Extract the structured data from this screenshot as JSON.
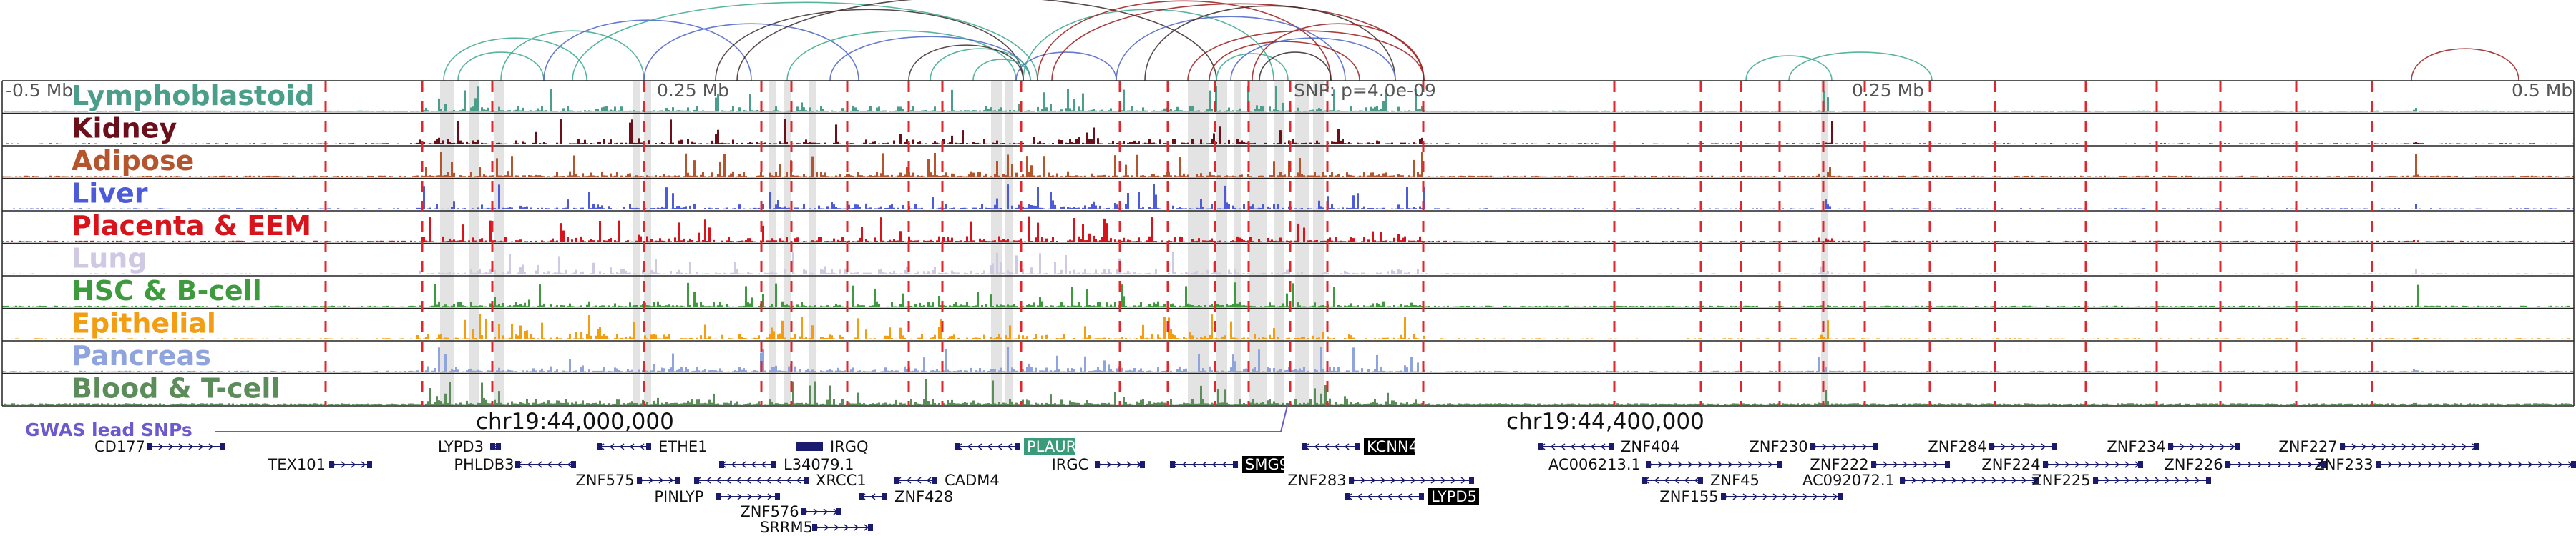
{
  "axis": {
    "left_label": "-0.5 Mb",
    "mid_left_label": "0.25 Mb",
    "snp_label": "SNP: p=4.0e-09",
    "mid_right_label": "0.25 Mb",
    "right_label": "0.5 Mb"
  },
  "coords": [
    "chr19:44,000,000",
    "chr19:44,400,000"
  ],
  "gwas_label": "GWAS lead SNPs",
  "tracks": [
    {
      "name": "Lymphoblastoid",
      "color": "#4a9e8a"
    },
    {
      "name": "Kidney",
      "color": "#6b0f1a"
    },
    {
      "name": "Adipose",
      "color": "#b5552d"
    },
    {
      "name": "Liver",
      "color": "#4d5bd9"
    },
    {
      "name": "Placenta & EEM",
      "color": "#d7141b"
    },
    {
      "name": "Lung",
      "color": "#cfc9e3"
    },
    {
      "name": "HSC & B-cell",
      "color": "#3d9a3d"
    },
    {
      "name": "Epithelial",
      "color": "#f29d12"
    },
    {
      "name": "Pancreas",
      "color": "#8fa3dc"
    },
    {
      "name": "Blood & T-cell",
      "color": "#5b8c5a"
    }
  ],
  "genes": [
    {
      "name": "CD177",
      "strand": "+"
    },
    {
      "name": "TEX101",
      "strand": "+"
    },
    {
      "name": "LYPD3",
      "strand": "-"
    },
    {
      "name": "PHLDB3",
      "strand": "-"
    },
    {
      "name": "ZNF575",
      "strand": "+"
    },
    {
      "name": "ETHE1",
      "strand": "-"
    },
    {
      "name": "PINLYP",
      "strand": "+"
    },
    {
      "name": "ZNF576",
      "strand": "+"
    },
    {
      "name": "SRRM5",
      "strand": "+"
    },
    {
      "name": "XRCC1",
      "strand": "-"
    },
    {
      "name": "IRGQ",
      "strand": "-"
    },
    {
      "name": "L34079.1",
      "strand": "-"
    },
    {
      "name": "ZNF428",
      "strand": "-"
    },
    {
      "name": "CADM4",
      "strand": "-"
    },
    {
      "name": "PLAUR",
      "strand": "-",
      "highlight": "#3a9a7a"
    },
    {
      "name": "IRGC",
      "strand": "+"
    },
    {
      "name": "SMG9",
      "strand": "-",
      "highlight": "#000000"
    },
    {
      "name": "KCNN4",
      "strand": "-",
      "highlight": "#000000"
    },
    {
      "name": "ZNF283",
      "strand": "+"
    },
    {
      "name": "LYPD5",
      "strand": "-",
      "highlight": "#000000"
    },
    {
      "name": "ZNF404",
      "strand": "-"
    },
    {
      "name": "AC006213.1",
      "strand": "+"
    },
    {
      "name": "ZNF45",
      "strand": "-"
    },
    {
      "name": "ZNF155",
      "strand": "+"
    },
    {
      "name": "ZNF230",
      "strand": "+"
    },
    {
      "name": "ZNF222",
      "strand": "+"
    },
    {
      "name": "AC092072.1",
      "strand": "+"
    },
    {
      "name": "ZNF284",
      "strand": "+"
    },
    {
      "name": "ZNF224",
      "strand": "+"
    },
    {
      "name": "ZNF225",
      "strand": "+"
    },
    {
      "name": "ZNF234",
      "strand": "+"
    },
    {
      "name": "ZNF226",
      "strand": "+"
    },
    {
      "name": "ZNF227",
      "strand": "+"
    },
    {
      "name": "ZNF233",
      "strand": "+"
    }
  ],
  "colors": {
    "arc_primary": "#3aa88c",
    "arc_dark": "#3a2a2a",
    "arc_red": "#9b1c1c",
    "arc_blue": "#4a63c9",
    "guide_line": "#e3262b",
    "gene_body": "#1a1a6e",
    "snp_line": "#6a5acd",
    "highlight_band": "#d9d9d9"
  }
}
